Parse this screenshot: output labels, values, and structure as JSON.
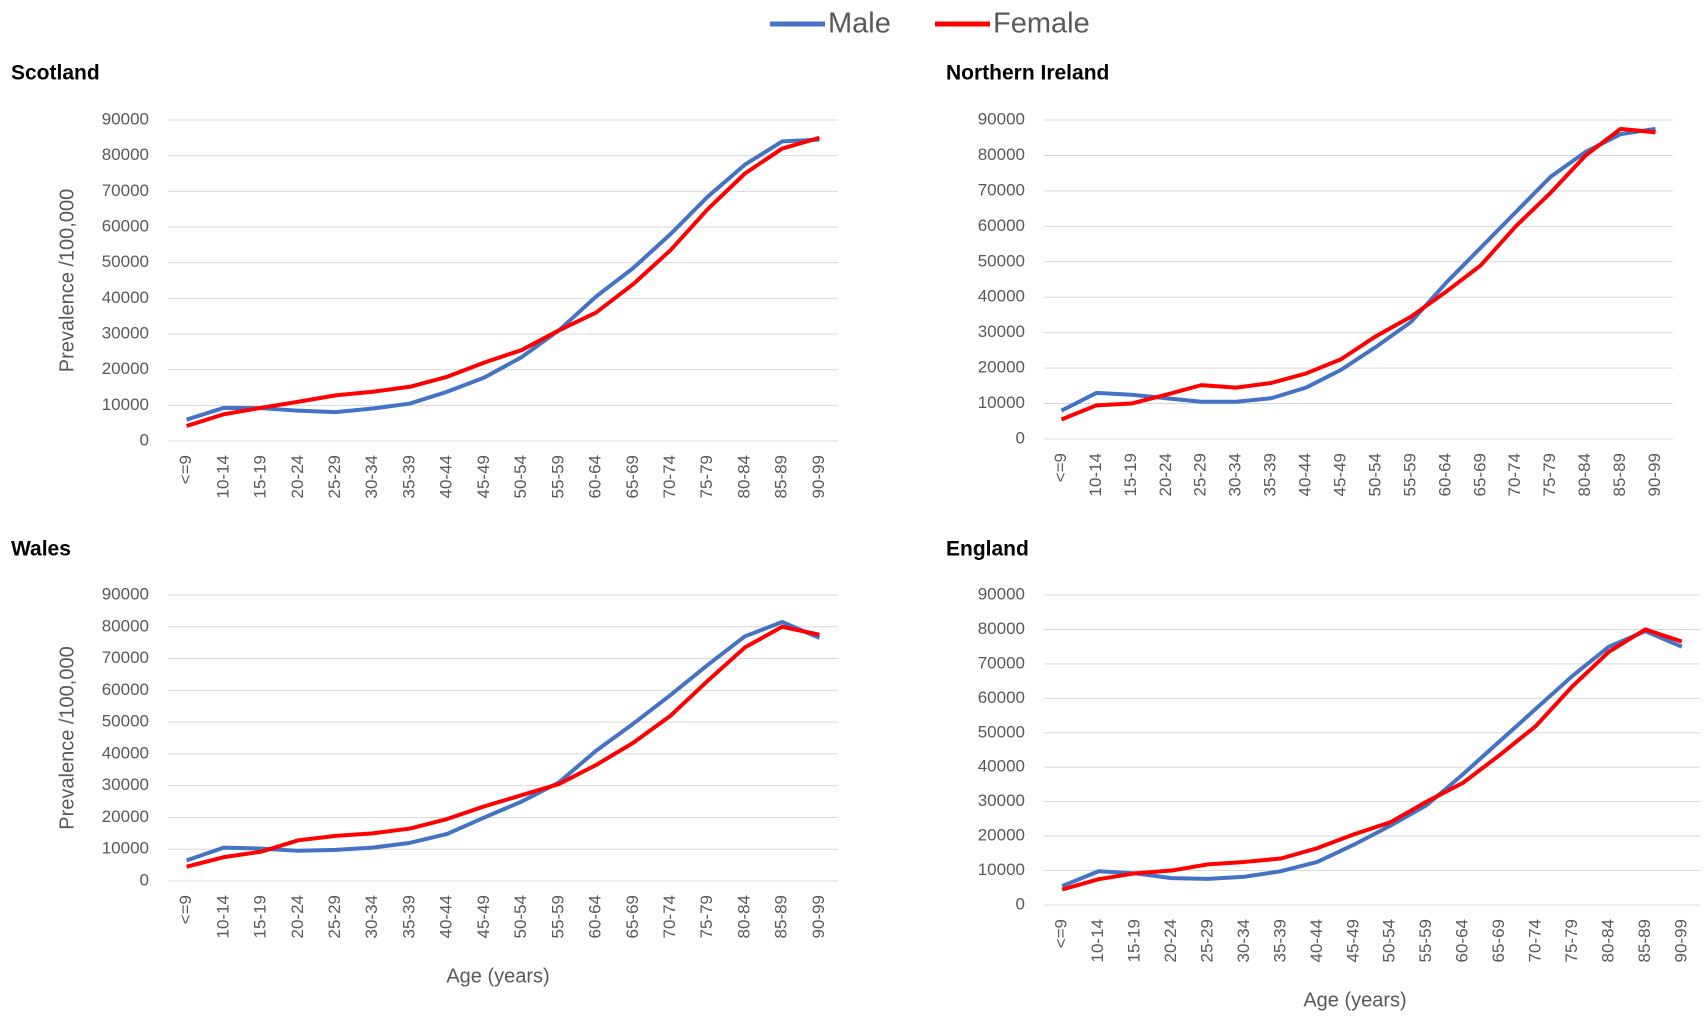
{
  "chart_data": [
    {
      "type": "line",
      "title": "Scotland",
      "y_label": "Prevalence /100,000",
      "categories": [
        "<=9",
        "10-14",
        "15-19",
        "20-24",
        "25-29",
        "30-34",
        "35-39",
        "40-44",
        "45-49",
        "50-54",
        "55-59",
        "60-64",
        "65-69",
        "70-74",
        "75-79",
        "80-84",
        "85-89",
        "90-99"
      ],
      "series": [
        {
          "name": "Male",
          "color": "#4472c4",
          "values": [
            6000,
            9300,
            9200,
            8500,
            8100,
            9100,
            10500,
            13800,
            17800,
            23500,
            31000,
            40500,
            48500,
            58000,
            68500,
            77500,
            84000,
            84500
          ]
        },
        {
          "name": "Female",
          "color": "#ff0000",
          "values": [
            4200,
            7500,
            9300,
            11000,
            12800,
            13800,
            15200,
            18000,
            22000,
            25500,
            31000,
            36000,
            44000,
            53500,
            65000,
            75000,
            82000,
            85000
          ]
        }
      ],
      "ylim": [
        0,
        90000
      ],
      "yticks": [
        0,
        10000,
        20000,
        30000,
        40000,
        50000,
        60000,
        70000,
        80000,
        90000
      ],
      "grid": true
    },
    {
      "type": "line",
      "title": "Northern Ireland",
      "categories": [
        "<=9",
        "10-14",
        "15-19",
        "20-24",
        "25-29",
        "30-34",
        "35-39",
        "40-44",
        "45-49",
        "50-54",
        "55-59",
        "60-64",
        "65-69",
        "70-74",
        "75-79",
        "80-84",
        "85-89",
        "90-99"
      ],
      "series": [
        {
          "values": [
            8000,
            13000,
            12500,
            11500,
            10500,
            10500,
            11500,
            14500,
            19500,
            26000,
            33000,
            44000,
            54000,
            64000,
            74000,
            81000,
            86000,
            87500
          ]
        },
        {
          "values": [
            5500,
            9500,
            10000,
            12500,
            15200,
            14500,
            15800,
            18500,
            22500,
            29000,
            34500,
            41500,
            49000,
            60000,
            69500,
            80000,
            87500,
            86500
          ]
        }
      ],
      "ylim": [
        0,
        90000
      ],
      "yticks": [
        0,
        10000,
        20000,
        30000,
        40000,
        50000,
        60000,
        70000,
        80000,
        90000
      ],
      "grid": true
    },
    {
      "type": "line",
      "title": "Wales",
      "y_label": "Prevalence /100,000",
      "x_label": "Age (years)",
      "categories": [
        "<=9",
        "10-14",
        "15-19",
        "20-24",
        "25-29",
        "30-34",
        "35-39",
        "40-44",
        "45-49",
        "50-54",
        "55-59",
        "60-64",
        "65-69",
        "70-74",
        "75-79",
        "80-84",
        "85-89",
        "90-99"
      ],
      "series": [
        {
          "values": [
            6500,
            10500,
            10200,
            9500,
            9800,
            10500,
            12000,
            14800,
            20000,
            25000,
            31000,
            41000,
            49500,
            58500,
            68000,
            77000,
            81500,
            76500
          ]
        },
        {
          "values": [
            4500,
            7500,
            9200,
            12800,
            14200,
            15000,
            16500,
            19500,
            23500,
            27000,
            30500,
            36500,
            43500,
            52000,
            63000,
            73500,
            80000,
            77500
          ]
        }
      ],
      "ylim": [
        0,
        90000
      ],
      "yticks": [
        0,
        10000,
        20000,
        30000,
        40000,
        50000,
        60000,
        70000,
        80000,
        90000
      ],
      "grid": true
    },
    {
      "type": "line",
      "title": "England",
      "x_label": "Age (years)",
      "categories": [
        "<=9",
        "10-14",
        "15-19",
        "20-24",
        "25-29",
        "30-34",
        "35-39",
        "40-44",
        "45-49",
        "50-54",
        "55-59",
        "60-64",
        "65-69",
        "70-74",
        "75-79",
        "80-84",
        "85-89",
        "90-99"
      ],
      "series": [
        {
          "values": [
            5500,
            9800,
            9200,
            7800,
            7600,
            8200,
            9800,
            12500,
            17500,
            23000,
            29000,
            38000,
            47500,
            57000,
            66500,
            75000,
            79500,
            75000
          ]
        },
        {
          "values": [
            4500,
            7500,
            9200,
            10000,
            11800,
            12500,
            13500,
            16500,
            20500,
            24000,
            30000,
            35500,
            43500,
            52000,
            63500,
            73500,
            80000,
            76500
          ]
        }
      ],
      "ylim": [
        0,
        90000
      ],
      "yticks": [
        0,
        10000,
        20000,
        30000,
        40000,
        50000,
        60000,
        70000,
        80000,
        90000
      ],
      "grid": true
    }
  ]
}
